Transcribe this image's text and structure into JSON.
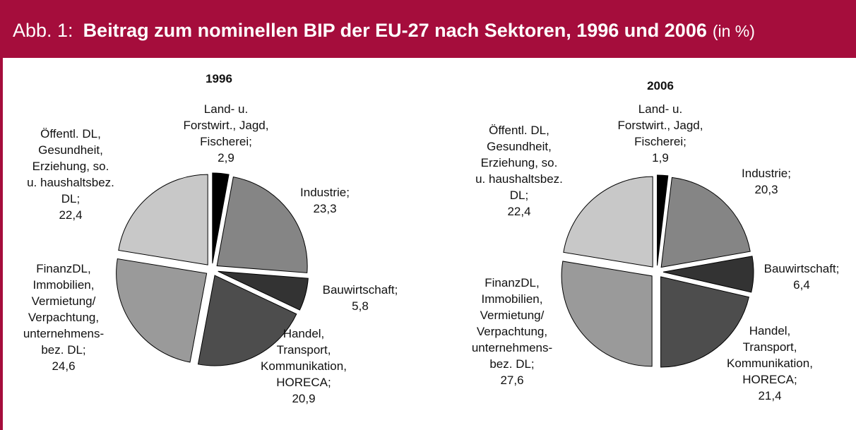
{
  "header": {
    "label": "Abb. 1:",
    "title": "Beitrag zum nominellen BIP der EU-27 nach Sektoren, 1996 und 2006",
    "unit": "(in %)"
  },
  "chart_data": [
    {
      "type": "pie",
      "title": "1996",
      "categories": [
        "Land- u.\nForstwirt., Jagd,\nFischerei;",
        "Industrie;",
        "Bauwirtschaft;",
        "Handel,\nTransport,\nKommunikation,\nHORECA;",
        "FinanzDL,\nImmobilien,\nVermietung/\nVerpachtung,\nunternehmens-\nbez. DL;",
        "Öffentl. DL,\nGesundheit,\nErziehung, so.\nu. haushaltsbez.\nDL;"
      ],
      "values": [
        2.9,
        23.3,
        5.8,
        20.9,
        24.6,
        22.4
      ],
      "value_labels": [
        "2,9",
        "23,3",
        "5,8",
        "20,9",
        "24,6",
        "22,4"
      ],
      "colors": [
        "#000000",
        "#858585",
        "#333333",
        "#4d4d4d",
        "#9a9a9a",
        "#c8c8c8"
      ]
    },
    {
      "type": "pie",
      "title": "2006",
      "categories": [
        "Land- u.\nForstwirt., Jagd,\nFischerei;",
        "Industrie;",
        "Bauwirtschaft;",
        "Handel,\nTransport,\nKommunikation,\nHORECA;",
        "FinanzDL,\nImmobilien,\nVermietung/\nVerpachtung,\nunternehmens-\nbez. DL;",
        "Öffentl. DL,\nGesundheit,\nErziehung, so.\nu. haushaltsbez.\nDL;"
      ],
      "values": [
        1.9,
        20.3,
        6.4,
        21.4,
        27.6,
        22.4
      ],
      "value_labels": [
        "1,9",
        "20,3",
        "6,4",
        "21,4",
        "27,6",
        "22,4"
      ],
      "colors": [
        "#000000",
        "#858585",
        "#333333",
        "#4d4d4d",
        "#9a9a9a",
        "#c8c8c8"
      ]
    }
  ]
}
